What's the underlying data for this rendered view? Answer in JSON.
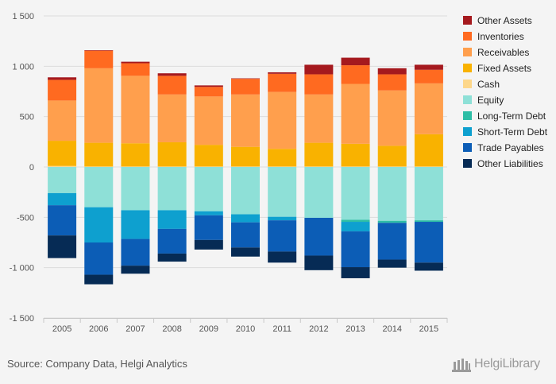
{
  "chart_data": {
    "type": "bar",
    "stacked": true,
    "categories": [
      "2005",
      "2006",
      "2007",
      "2008",
      "2009",
      "2010",
      "2011",
      "2012",
      "2013",
      "2014",
      "2015"
    ],
    "ylim": [
      -1500,
      1500
    ],
    "yticks": [
      -1500,
      -1000,
      -500,
      0,
      500,
      1000,
      1500
    ],
    "ytick_labels": [
      "-1 500",
      "-1 000",
      "-500",
      "0",
      "500",
      "1 000",
      "1 500"
    ],
    "grid": true,
    "legend_position": "right",
    "series": [
      {
        "name": "Cash",
        "color": "#fdd78a",
        "values": [
          10,
          5,
          5,
          5,
          5,
          5,
          5,
          5,
          5,
          5,
          5
        ]
      },
      {
        "name": "Fixed Assets",
        "color": "#f9b200",
        "values": [
          250,
          235,
          230,
          240,
          215,
          195,
          175,
          235,
          225,
          205,
          320
        ]
      },
      {
        "name": "Receivables",
        "color": "#ff9f4d",
        "values": [
          400,
          740,
          670,
          475,
          480,
          520,
          565,
          480,
          595,
          550,
          505
        ]
      },
      {
        "name": "Inventories",
        "color": "#ff6a20",
        "values": [
          205,
          175,
          125,
          185,
          95,
          155,
          180,
          200,
          185,
          160,
          135
        ]
      },
      {
        "name": "Other Assets",
        "color": "#a5191e",
        "values": [
          25,
          5,
          15,
          25,
          15,
          5,
          15,
          95,
          75,
          60,
          50
        ]
      },
      {
        "name": "Equity",
        "color": "#8ee0d7",
        "values": [
          -260,
          -400,
          -430,
          -430,
          -440,
          -470,
          -495,
          -505,
          -525,
          -535,
          -530
        ]
      },
      {
        "name": "Long-Term Debt",
        "color": "#2ebea6",
        "values": [
          0,
          0,
          0,
          0,
          0,
          0,
          0,
          0,
          -20,
          -20,
          -15
        ]
      },
      {
        "name": "Short-Term Debt",
        "color": "#0ea0cf",
        "values": [
          -120,
          -350,
          -285,
          -185,
          -40,
          -80,
          -35,
          0,
          -95,
          0,
          0
        ]
      },
      {
        "name": "Trade Payables",
        "color": "#0c5db6",
        "values": [
          -300,
          -320,
          -265,
          -245,
          -245,
          -250,
          -310,
          -375,
          -355,
          -365,
          -405
        ]
      },
      {
        "name": "Other Liabilities",
        "color": "#062b55",
        "values": [
          -225,
          -95,
          -80,
          -80,
          -95,
          -90,
          -110,
          -145,
          -110,
          -80,
          -80
        ]
      }
    ],
    "legend_order": [
      "Other Assets",
      "Inventories",
      "Receivables",
      "Fixed Assets",
      "Cash",
      "Equity",
      "Long-Term Debt",
      "Short-Term Debt",
      "Trade Payables",
      "Other Liabilities"
    ]
  },
  "footer": {
    "source": "Source: Company Data, Helgi Analytics",
    "logo_text": "HelgiLibrary"
  }
}
